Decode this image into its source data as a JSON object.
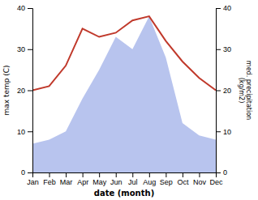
{
  "chart_data": {
    "type": "line",
    "xlabel": "date (month)",
    "ylabel": "max temp (C)",
    "y2label": "med. precipitation\n(kg/m2)",
    "categories": [
      "Jan",
      "Feb",
      "Mar",
      "Apr",
      "May",
      "Jun",
      "Jul",
      "Aug",
      "Sep",
      "Oct",
      "Nov",
      "Dec"
    ],
    "series": [
      {
        "type": "area",
        "axis": "y2",
        "color": "#b8c4ee",
        "values": [
          7,
          8,
          10,
          18,
          25,
          33,
          30,
          38,
          28,
          12,
          9,
          8
        ]
      },
      {
        "type": "line",
        "color": "#c0392b",
        "values": [
          20,
          21,
          26,
          35,
          33,
          34,
          37,
          38,
          32,
          27,
          23,
          20
        ]
      }
    ],
    "ylim": [
      0,
      40
    ],
    "yticks": [
      0,
      10,
      20,
      30,
      40
    ],
    "y2lim": [
      0,
      40
    ],
    "y2ticks": [
      0,
      10,
      20,
      30,
      40
    ],
    "grid": false
  }
}
